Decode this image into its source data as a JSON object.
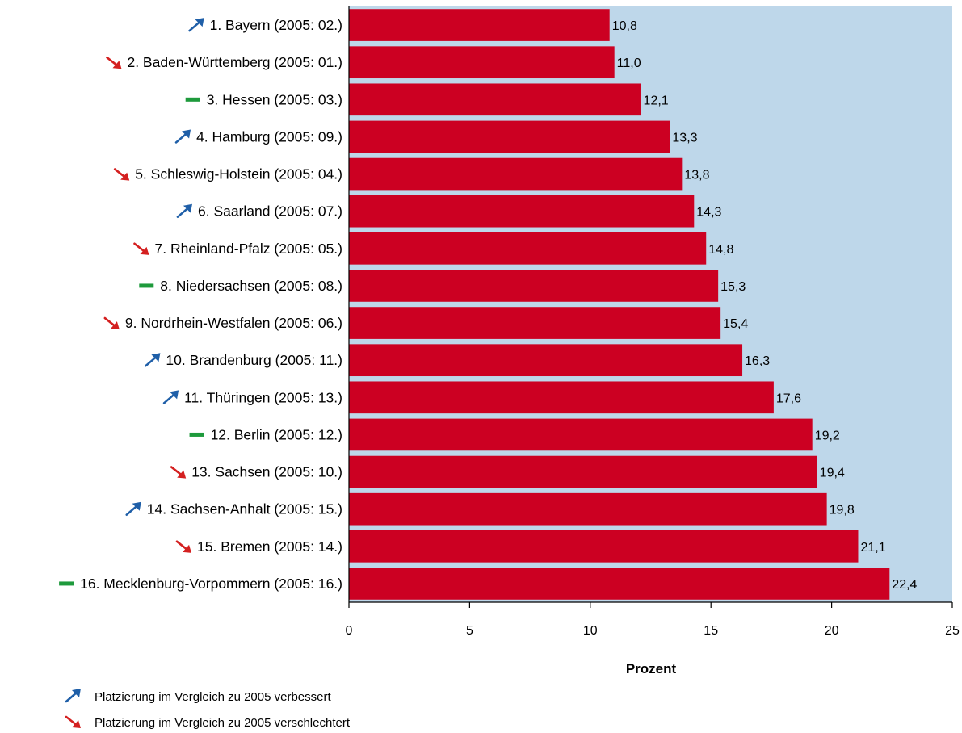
{
  "chart_data": {
    "type": "bar",
    "orientation": "horizontal",
    "categories": [
      "1. Bayern (2005: 02.)",
      "2. Baden-Württemberg (2005: 01.)",
      "3. Hessen (2005: 03.)",
      "4. Hamburg (2005: 09.)",
      "5. Schleswig-Holstein (2005: 04.)",
      "6. Saarland (2005: 07.)",
      "7. Rheinland-Pfalz (2005: 05.)",
      "8. Niedersachsen (2005: 08.)",
      "9. Nordrhein-Westfalen (2005: 06.)",
      "10. Brandenburg (2005: 11.)",
      "11. Thüringen (2005: 13.)",
      "12. Berlin (2005: 12.)",
      "13. Sachsen (2005: 10.)",
      "14. Sachsen-Anhalt (2005: 15.)",
      "15. Bremen (2005: 14.)",
      "16. Mecklenburg-Vorpommern (2005: 16.)"
    ],
    "values": [
      10.8,
      11.0,
      12.1,
      13.3,
      13.8,
      14.3,
      14.8,
      15.3,
      15.4,
      16.3,
      17.6,
      19.2,
      19.4,
      19.8,
      21.1,
      22.4
    ],
    "value_labels": [
      "10,8",
      "11,0",
      "12,1",
      "13,3",
      "13,8",
      "14,3",
      "14,8",
      "15,3",
      "15,4",
      "16,3",
      "17,6",
      "19,2",
      "19,4",
      "19,8",
      "21,1",
      "22,4"
    ],
    "trend": [
      "up",
      "down",
      "same",
      "up",
      "down",
      "up",
      "down",
      "same",
      "down",
      "up",
      "up",
      "same",
      "down",
      "up",
      "down",
      "same"
    ],
    "xlabel": "Prozent",
    "xlim": [
      0,
      25
    ],
    "xticks": [
      0,
      5,
      10,
      15,
      20,
      25
    ],
    "grid": false,
    "colors": {
      "bar": "#cc0022",
      "plot_background": "#bed7ea",
      "up_arrow": "#1f5fa8",
      "down_arrow": "#d42020",
      "same_dash": "#1e9a3c"
    },
    "legend": {
      "placement": "bottom-left",
      "items": [
        {
          "icon": "up-arrow",
          "text": "Platzierung im Vergleich zu 2005 verbessert"
        },
        {
          "icon": "down-arrow",
          "text": "Platzierung im Vergleich zu 2005 verschlechtert"
        }
      ]
    }
  }
}
